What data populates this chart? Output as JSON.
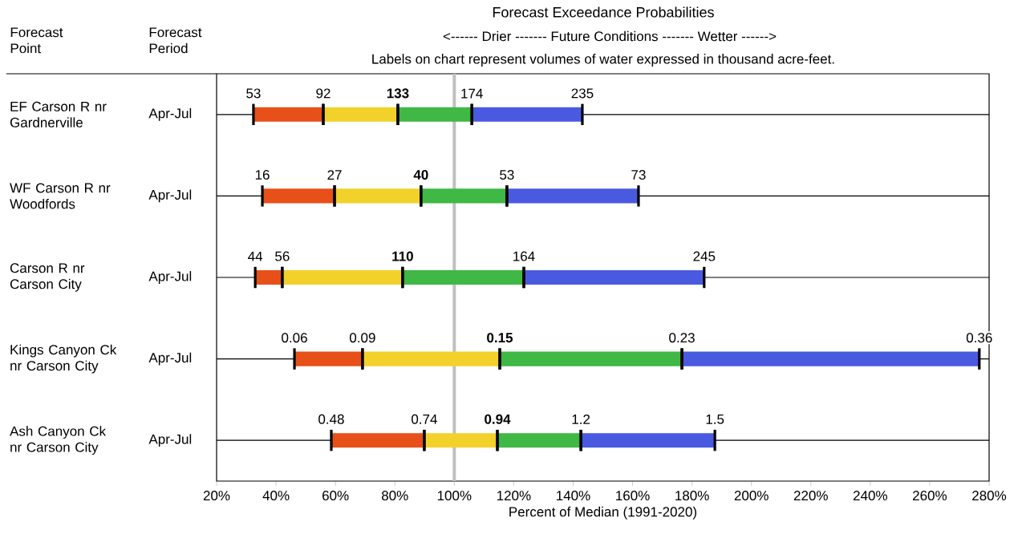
{
  "chart_data": {
    "type": "bar",
    "orientation": "horizontal",
    "title": "Forecast Exceedance Probabilities",
    "subtitle": "<------ Drier ------- Future Conditions ------- Wetter ------>",
    "xlabel": "Percent of Median (1991-2020)",
    "categories": [
      "EF Carson R nr Gardnerville",
      "WF Carson R nr Woodfords",
      "Carson R nr Carson City",
      "Kings Canyon Ck nr Carson City",
      "Ash Canyon Ck nr Carson City"
    ],
    "series": [
      {
        "color": "#e8501a",
        "base": [
          32.4,
          35.4,
          33.0,
          46.2,
          58.6
        ],
        "values": [
          23.5,
          24.3,
          9.1,
          22.9,
          31.3
        ]
      },
      {
        "color": "#f2d22a",
        "base": [
          55.9,
          59.7,
          42.1,
          69.1,
          89.9
        ],
        "values": [
          25.1,
          29.1,
          40.5,
          46.2,
          24.6
        ]
      },
      {
        "color": "#3fb845",
        "base": [
          81.0,
          88.8,
          82.6,
          115.3,
          114.5
        ],
        "values": [
          24.9,
          28.9,
          40.8,
          61.3,
          28.1
        ]
      },
      {
        "color": "#4a5ae0",
        "base": [
          105.9,
          117.7,
          123.4,
          176.6,
          142.6
        ],
        "values": [
          37.2,
          44.3,
          60.7,
          100.1,
          45.1
        ]
      }
    ],
    "xlim": [
      20,
      280
    ],
    "xticks": [
      {
        "value": 20,
        "label": "20%"
      },
      {
        "value": 40,
        "label": "40%"
      },
      {
        "value": 60,
        "label": "60%"
      },
      {
        "value": 80,
        "label": "80%"
      },
      {
        "value": 100,
        "label": "100%"
      },
      {
        "value": 120,
        "label": "120%"
      },
      {
        "value": 140,
        "label": "140%"
      },
      {
        "value": 160,
        "label": "160%"
      },
      {
        "value": 180,
        "label": "180%"
      },
      {
        "value": 200,
        "label": "200%"
      },
      {
        "value": 220,
        "label": "220%"
      },
      {
        "value": 240,
        "label": "240%"
      },
      {
        "value": 260,
        "label": "260%"
      },
      {
        "value": 280,
        "label": "280%"
      }
    ],
    "grid": "y",
    "ref_lines": [
      {
        "axis": "x",
        "value": 100,
        "color": "#c0c0c0"
      }
    ],
    "annotations": [
      "Forecast Point",
      "Forecast Period",
      "Labels on chart represent volumes of water expressed in thousand acre-feet.",
      "Apr-Jul",
      "Apr-Jul",
      "Apr-Jul",
      "Apr-Jul",
      "Apr-Jul",
      {
        "text": "53",
        "x": 32.4,
        "y": "EF Carson R nr Gardnerville"
      },
      {
        "text": "92",
        "x": 55.9,
        "y": "EF Carson R nr Gardnerville"
      },
      {
        "text": "**133**",
        "x": 81.0,
        "y": "EF Carson R nr Gardnerville"
      },
      {
        "text": "174",
        "x": 105.9,
        "y": "EF Carson R nr Gardnerville"
      },
      {
        "text": "235",
        "x": 143.1,
        "y": "EF Carson R nr Gardnerville"
      },
      {
        "text": "16",
        "x": 35.4,
        "y": "WF Carson R nr Woodfords"
      },
      {
        "text": "27",
        "x": 59.7,
        "y": "WF Carson R nr Woodfords"
      },
      {
        "text": "**40**",
        "x": 88.8,
        "y": "WF Carson R nr Woodfords"
      },
      {
        "text": "53",
        "x": 117.7,
        "y": "WF Carson R nr Woodfords"
      },
      {
        "text": "73",
        "x": 162.0,
        "y": "WF Carson R nr Woodfords"
      },
      {
        "text": "44",
        "x": 33.0,
        "y": "Carson R nr Carson City"
      },
      {
        "text": "56",
        "x": 42.1,
        "y": "Carson R nr Carson City"
      },
      {
        "text": "**110**",
        "x": 82.6,
        "y": "Carson R nr Carson City"
      },
      {
        "text": "164",
        "x": 123.4,
        "y": "Carson R nr Carson City"
      },
      {
        "text": "245",
        "x": 184.1,
        "y": "Carson R nr Carson City"
      },
      {
        "text": "0.06",
        "x": 46.2,
        "y": "Kings Canyon Ck nr Carson City"
      },
      {
        "text": "0.09",
        "x": 69.1,
        "y": "Kings Canyon Ck nr Carson City"
      },
      {
        "text": "**0.15**",
        "x": 115.3,
        "y": "Kings Canyon Ck nr Carson City"
      },
      {
        "text": "0.23",
        "x": 176.6,
        "y": "Kings Canyon Ck nr Carson City"
      },
      {
        "text": "0.36",
        "x": 276.7,
        "y": "Kings Canyon Ck nr Carson City"
      },
      {
        "text": "0.48",
        "x": 58.6,
        "y": "Ash Canyon Ck nr Carson City"
      },
      {
        "text": "0.74",
        "x": 89.9,
        "y": "Ash Canyon Ck nr Carson City"
      },
      {
        "text": "**0.94**",
        "x": 114.5,
        "y": "Ash Canyon Ck nr Carson City"
      },
      {
        "text": "1.2",
        "x": 142.6,
        "y": "Ash Canyon Ck nr Carson City"
      },
      {
        "text": "1.5",
        "x": 187.7,
        "y": "Ash Canyon Ck nr Carson City"
      }
    ]
  }
}
